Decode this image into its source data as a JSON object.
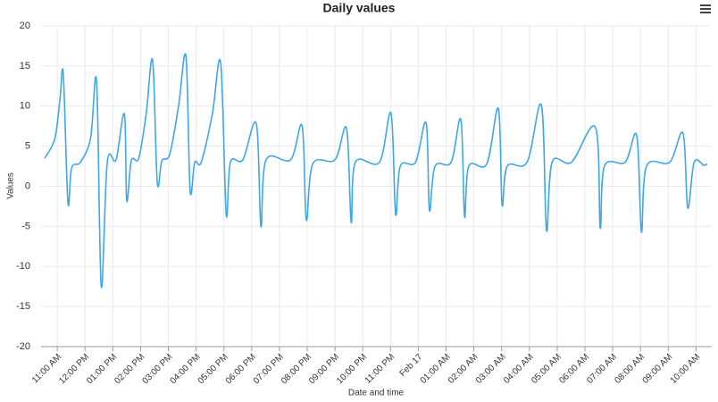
{
  "chart_data": {
    "type": "line",
    "title": "Daily values",
    "x_label": "Date and time",
    "y_label": "Values",
    "x": [
      "Feb 16 10:33",
      "Feb 16 10:55",
      "Feb 16 11:06",
      "Feb 16 11:13",
      "Feb 16 11:23",
      "Feb 16 11:31",
      "Feb 16 11:50",
      "Feb 16 12:12",
      "Feb 16 12:25",
      "Feb 16 12:35",
      "Feb 16 12:48",
      "Feb 16 13:07",
      "Feb 16 13:25",
      "Feb 16 13:30",
      "Feb 16 13:40",
      "Feb 16 13:56",
      "Feb 16 14:12",
      "Feb 16 14:26",
      "Feb 16 14:36",
      "Feb 16 14:46",
      "Feb 16 15:03",
      "Feb 16 15:22",
      "Feb 16 15:38",
      "Feb 16 15:47",
      "Feb 16 15:57",
      "Feb 16 16:11",
      "Feb 16 16:35",
      "Feb 16 16:53",
      "Feb 16 17:05",
      "Feb 16 17:14",
      "Feb 16 17:41",
      "Feb 16 18:10",
      "Feb 16 18:20",
      "Feb 16 18:31",
      "Feb 16 19:24",
      "Feb 16 19:49",
      "Feb 16 19:58",
      "Feb 16 20:12",
      "Feb 16 21:00",
      "Feb 16 21:25",
      "Feb 16 21:35",
      "Feb 16 21:44",
      "Feb 16 22:36",
      "Feb 16 23:01",
      "Feb 16 23:11",
      "Feb 16 23:21",
      "Feb 16 23:54",
      "Feb 17 00:17",
      "Feb 17 00:24",
      "Feb 17 00:36",
      "Feb 17 01:11",
      "Feb 17 01:32",
      "Feb 17 01:40",
      "Feb 17 01:49",
      "Feb 17 02:28",
      "Feb 17 02:53",
      "Feb 17 03:01",
      "Feb 17 03:12",
      "Feb 17 03:55",
      "Feb 17 04:26",
      "Feb 17 04:37",
      "Feb 17 04:49",
      "Feb 17 05:31",
      "Feb 17 06:23",
      "Feb 17 06:33",
      "Feb 17 06:42",
      "Feb 17 07:27",
      "Feb 17 07:52",
      "Feb 17 08:02",
      "Feb 17 08:13",
      "Feb 17 09:03",
      "Feb 17 09:32",
      "Feb 17 09:42",
      "Feb 17 09:56",
      "Feb 17 10:17",
      "Feb 17 10:24"
    ],
    "series": [
      {
        "name": "Values",
        "color": "#3ea8e6",
        "values": [
          3.5,
          6,
          11,
          14,
          -2,
          2.3,
          3,
          6,
          13,
          -12.5,
          3,
          3.3,
          9,
          -1.8,
          3.2,
          3.5,
          9,
          15.7,
          0.5,
          3.2,
          4,
          10,
          16.2,
          -0.5,
          3,
          3,
          9,
          15.4,
          -3.5,
          3,
          3.3,
          7.8,
          -5,
          3.3,
          3.3,
          7.5,
          -4.2,
          2.8,
          3.3,
          7.2,
          -4.5,
          3,
          3,
          9.1,
          -3.5,
          2.5,
          3,
          7.9,
          -3,
          2.5,
          3,
          8.3,
          -3.8,
          2.5,
          2.8,
          9.7,
          -2.3,
          2.5,
          3,
          10.1,
          -5.5,
          3,
          3,
          7.3,
          -5.2,
          2.5,
          3,
          6.3,
          -5.7,
          2.5,
          3,
          6.6,
          -2.7,
          3,
          2.6,
          2.8
        ]
      }
    ],
    "xlim": [
      "Feb 16 10:25",
      "Feb 17 10:34"
    ],
    "xticks": [
      {
        "value": "Feb 16 11:00",
        "label": "11:00 AM"
      },
      {
        "value": "Feb 16 12:00",
        "label": "12:00 PM"
      },
      {
        "value": "Feb 16 13:00",
        "label": "01:00 PM"
      },
      {
        "value": "Feb 16 14:00",
        "label": "02:00 PM"
      },
      {
        "value": "Feb 16 15:00",
        "label": "03:00 PM"
      },
      {
        "value": "Feb 16 16:00",
        "label": "04:00 PM"
      },
      {
        "value": "Feb 16 17:00",
        "label": "05:00 PM"
      },
      {
        "value": "Feb 16 18:00",
        "label": "06:00 PM"
      },
      {
        "value": "Feb 16 19:00",
        "label": "07:00 PM"
      },
      {
        "value": "Feb 16 20:00",
        "label": "08:00 PM"
      },
      {
        "value": "Feb 16 21:00",
        "label": "09:00 PM"
      },
      {
        "value": "Feb 16 22:00",
        "label": "10:00 PM"
      },
      {
        "value": "Feb 16 23:00",
        "label": "11:00 PM"
      },
      {
        "value": "Feb 17 00:00",
        "label": "Feb 17"
      },
      {
        "value": "Feb 17 01:00",
        "label": "01:00 AM"
      },
      {
        "value": "Feb 17 02:00",
        "label": "02:00 AM"
      },
      {
        "value": "Feb 17 03:00",
        "label": "03:00 AM"
      },
      {
        "value": "Feb 17 04:00",
        "label": "04:00 AM"
      },
      {
        "value": "Feb 17 05:00",
        "label": "05:00 AM"
      },
      {
        "value": "Feb 17 06:00",
        "label": "06:00 AM"
      },
      {
        "value": "Feb 17 07:00",
        "label": "07:00 AM"
      },
      {
        "value": "Feb 17 08:00",
        "label": "08:00 AM"
      },
      {
        "value": "Feb 17 09:00",
        "label": "09:00 AM"
      },
      {
        "value": "Feb 17 10:00",
        "label": "10:00 AM"
      }
    ],
    "ylim": [
      -20,
      20
    ],
    "yticks": [
      -20,
      -15,
      -10,
      -5,
      0,
      5,
      10,
      15,
      20
    ],
    "grid": true
  }
}
